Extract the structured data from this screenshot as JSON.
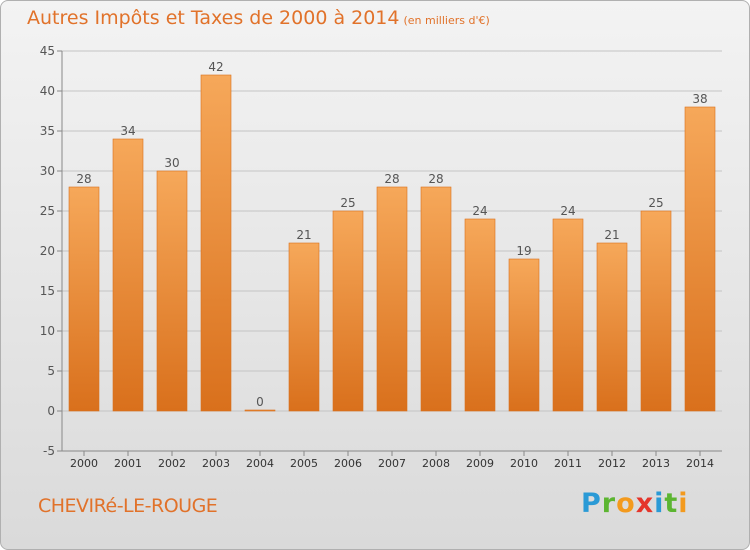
{
  "title": "Autres Impôts et Taxes de 2000 à 2014",
  "unit": "(en milliers d'€)",
  "location": "CHEVIRé-LE-ROUGE",
  "brand": {
    "letters": [
      "P",
      "r",
      "o",
      "x",
      "i",
      "t",
      "i"
    ],
    "colors": [
      "#2a9ad6",
      "#5cb531",
      "#f39a1e",
      "#e5352b",
      "#2a9ad6",
      "#5cb531",
      "#f39a1e"
    ]
  },
  "colors": {
    "bar_light": "#f6a85a",
    "bar_dark": "#d9701c",
    "title": "#e1722a",
    "grid": "#c4c4c4",
    "label": "#555555"
  },
  "chart_data": {
    "type": "bar",
    "title": "Autres Impôts et Taxes de 2000 à 2014",
    "unit": "(en milliers d'€)",
    "categories": [
      "2000",
      "2001",
      "2002",
      "2003",
      "2004",
      "2005",
      "2006",
      "2007",
      "2008",
      "2009",
      "2010",
      "2011",
      "2012",
      "2013",
      "2014"
    ],
    "values": [
      28,
      34,
      30,
      42,
      0,
      21,
      25,
      28,
      28,
      24,
      19,
      24,
      21,
      25,
      38
    ],
    "ylim": [
      -5,
      45
    ],
    "yticks": [
      -5,
      0,
      5,
      10,
      15,
      20,
      25,
      30,
      35,
      40,
      45
    ],
    "grid": true
  }
}
